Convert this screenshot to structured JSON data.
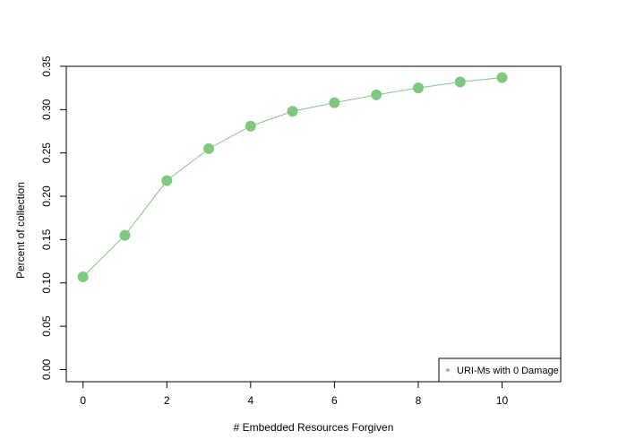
{
  "chart_data": {
    "type": "line",
    "xlabel": "# Embedded Resources Forgiven",
    "ylabel": "Percent of collection",
    "x": [
      0,
      1,
      2,
      3,
      4,
      5,
      6,
      7,
      8,
      9,
      10
    ],
    "series": [
      {
        "name": "URI-Ms with 0 Damage",
        "color": "#7fc97f",
        "values": [
          0.107,
          0.155,
          0.218,
          0.255,
          0.281,
          0.298,
          0.308,
          0.317,
          0.325,
          0.332,
          0.337
        ]
      }
    ],
    "x_ticks": [
      0,
      2,
      4,
      6,
      8,
      10
    ],
    "x_tick_labels": [
      "0",
      "2",
      "4",
      "6",
      "8",
      "10"
    ],
    "y_ticks": [
      0,
      0.05,
      0.1,
      0.15,
      0.2,
      0.25,
      0.3,
      0.35
    ],
    "y_tick_labels": [
      "0.00",
      "0.05",
      "0.10",
      "0.15",
      "0.20",
      "0.25",
      "0.30",
      "0.35"
    ],
    "xlim": [
      -0.4,
      11.4
    ],
    "ylim": [
      -0.014,
      0.35
    ],
    "grid": false,
    "legend_position": "bottom-right"
  }
}
